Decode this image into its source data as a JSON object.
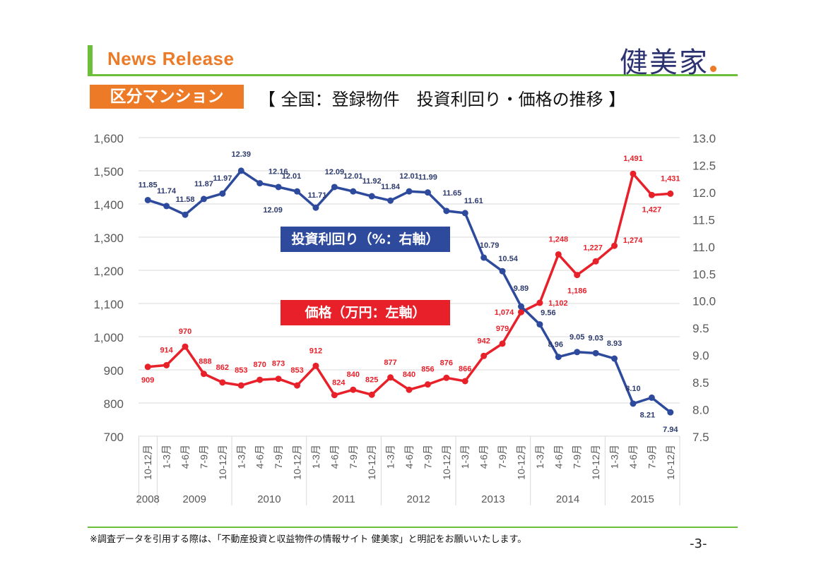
{
  "header": {
    "news_release": "News Release",
    "logo_text": "健美家",
    "category_badge": "区分マンション",
    "subtitle": "【 全国：登録物件　投資利回り・価格の推移 】"
  },
  "footer": {
    "note": "※調査データを引用する際は、「不動産投資と収益物件の情報サイト 健美家」と明記をお願いいたします。",
    "page_number": "-3-"
  },
  "colors": {
    "brand_green": "#6cbf3a",
    "brand_orange": "#ec7a26",
    "yield_blue": "#2e4a9c",
    "price_red": "#e8202a",
    "logo_navy": "#2d3370"
  },
  "chart_data": {
    "type": "line",
    "title": "全国：登録物件 投資利回り・価格の推移",
    "x": [
      "10-12月",
      "1-3月",
      "4-6月",
      "7-9月",
      "10-12月",
      "1-3月",
      "4-6月",
      "7-9月",
      "10-12月",
      "1-3月",
      "4-6月",
      "7-9月",
      "10-12月",
      "1-3月",
      "4-6月",
      "7-9月",
      "10-12月",
      "1-3月",
      "4-6月",
      "7-9月",
      "10-12月",
      "1-3月",
      "4-6月",
      "7-9月",
      "10-12月",
      "1-3月",
      "4-6月",
      "7-9月",
      "10-12月"
    ],
    "year_groups": [
      {
        "label": "2008",
        "count": 1
      },
      {
        "label": "2009",
        "count": 4
      },
      {
        "label": "2010",
        "count": 4
      },
      {
        "label": "2011",
        "count": 4
      },
      {
        "label": "2012",
        "count": 4
      },
      {
        "label": "2013",
        "count": 4
      },
      {
        "label": "2014",
        "count": 4
      },
      {
        "label": "2015",
        "count": 4
      }
    ],
    "left_axis": {
      "ylim": [
        700,
        1600
      ],
      "ticks": [
        700,
        800,
        900,
        1000,
        1100,
        1200,
        1300,
        1400,
        1500,
        1600
      ],
      "tick_labels": [
        "700",
        "800",
        "900",
        "1,000",
        "1,100",
        "1,200",
        "1,300",
        "1,400",
        "1,500",
        "1,600"
      ]
    },
    "right_axis": {
      "ylim": [
        7.5,
        13.0
      ],
      "ticks": [
        7.5,
        8.0,
        8.5,
        9.0,
        9.5,
        10.0,
        10.5,
        11.0,
        11.5,
        12.0,
        12.5,
        13.0
      ],
      "tick_labels": [
        "7.5",
        "8.0",
        "8.5",
        "9.0",
        "9.5",
        "10.0",
        "10.5",
        "11.0",
        "11.5",
        "12.0",
        "12.5",
        "13.0"
      ]
    },
    "grid": true,
    "series": [
      {
        "name": "投資利回り（%：右軸）",
        "axis": "right",
        "color": "#2e4a9c",
        "values": [
          11.85,
          11.74,
          11.58,
          11.87,
          11.97,
          12.39,
          12.16,
          12.09,
          12.01,
          11.71,
          12.09,
          12.01,
          11.92,
          11.84,
          12.01,
          11.99,
          11.65,
          11.61,
          10.79,
          10.54,
          9.89,
          9.56,
          8.96,
          9.05,
          9.03,
          8.93,
          8.1,
          8.21,
          7.94
        ],
        "labels": [
          "11.85",
          "11.74",
          "11.58",
          "11.87",
          "11.97",
          "12.39",
          "12.16",
          "12.09",
          "12.01",
          "11.71",
          "12.09",
          "12.01",
          "11.92",
          "11.84",
          "12.01",
          "11.99",
          "11.65",
          "11.61",
          "10.79",
          "10.54",
          "9.89",
          "9.56",
          "8.96",
          "9.05",
          "9.03",
          "8.93",
          "8.10",
          "8.21",
          "7.94"
        ]
      },
      {
        "name": "価格（万円：左軸）",
        "axis": "left",
        "color": "#e8202a",
        "values": [
          909,
          914,
          970,
          888,
          862,
          853,
          870,
          873,
          853,
          912,
          824,
          840,
          825,
          877,
          840,
          856,
          876,
          866,
          942,
          979,
          1074,
          1102,
          1248,
          1186,
          1227,
          1274,
          1491,
          1427,
          1431
        ],
        "labels": [
          "909",
          "914",
          "970",
          "888",
          "862",
          "853",
          "870",
          "873",
          "853",
          "912",
          "824",
          "840",
          "825",
          "877",
          "840",
          "856",
          "876",
          "866",
          "942",
          "979",
          "1,074",
          "1,102",
          "1,248",
          "1,186",
          "1,227",
          "1,274",
          "1,491",
          "1,427",
          "1,431"
        ]
      }
    ],
    "legend": [
      {
        "label": "投資利回り（%：右軸）",
        "series": 0,
        "placement": "center"
      },
      {
        "label": "価格（万円：左軸）",
        "series": 1,
        "placement": "center"
      }
    ]
  }
}
